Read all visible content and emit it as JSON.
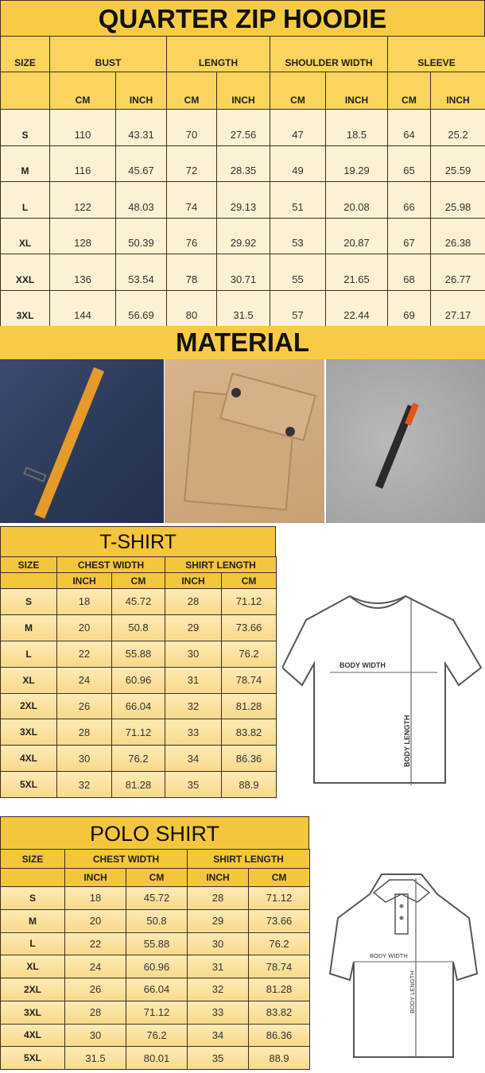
{
  "colors": {
    "title_bg": "#f7cb45",
    "header_bg": "#fad45c",
    "row_bg": "#fdf1d3"
  },
  "hoodie": {
    "title": "QUARTER ZIP HOODIE",
    "size_label": "SIZE",
    "groups": [
      "BUST",
      "LENGTH",
      "SHOULDER WIDTH",
      "SLEEVE"
    ],
    "units": [
      "CM",
      "INCH",
      "CM",
      "INCH",
      "CM",
      "INCH",
      "CM",
      "INCH"
    ],
    "rows": [
      [
        "S",
        "110",
        "43.31",
        "70",
        "27.56",
        "47",
        "18.5",
        "64",
        "25.2"
      ],
      [
        "M",
        "116",
        "45.67",
        "72",
        "28.35",
        "49",
        "19.29",
        "65",
        "25.59"
      ],
      [
        "L",
        "122",
        "48.03",
        "74",
        "29.13",
        "51",
        "20.08",
        "66",
        "25.98"
      ],
      [
        "XL",
        "128",
        "50.39",
        "76",
        "29.92",
        "53",
        "20.87",
        "67",
        "26.38"
      ],
      [
        "XXL",
        "136",
        "53.54",
        "78",
        "30.71",
        "55",
        "21.65",
        "68",
        "26.77"
      ],
      [
        "3XL",
        "144",
        "56.69",
        "80",
        "31.5",
        "57",
        "22.44",
        "69",
        "27.17"
      ]
    ]
  },
  "material": {
    "title": "MATERIAL",
    "photos": [
      "navy-fabric-orange-strap",
      "tan-fabric-pocket-flap",
      "grey-fabric-zipper"
    ]
  },
  "tshirt": {
    "title": "T-SHIRT",
    "size_label": "SIZE",
    "groups": [
      "CHEST WIDTH",
      "SHIRT LENGTH"
    ],
    "units": [
      "INCH",
      "CM",
      "INCH",
      "CM"
    ],
    "rows": [
      [
        "S",
        "18",
        "45.72",
        "28",
        "71.12"
      ],
      [
        "M",
        "20",
        "50.8",
        "29",
        "73.66"
      ],
      [
        "L",
        "22",
        "55.88",
        "30",
        "76.2"
      ],
      [
        "XL",
        "24",
        "60.96",
        "31",
        "78.74"
      ],
      [
        "2XL",
        "26",
        "66.04",
        "32",
        "81.28"
      ],
      [
        "3XL",
        "28",
        "71.12",
        "33",
        "83.82"
      ],
      [
        "4XL",
        "30",
        "76.2",
        "34",
        "86.36"
      ],
      [
        "5XL",
        "32",
        "81.28",
        "35",
        "88.9"
      ]
    ],
    "diagram": {
      "width_label": "BODY WIDTH",
      "length_label": "BODY LENGTH"
    }
  },
  "polo": {
    "title": "POLO SHIRT",
    "size_label": "SIZE",
    "groups": [
      "CHEST WIDTH",
      "SHIRT LENGTH"
    ],
    "units": [
      "INCH",
      "CM",
      "INCH",
      "CM"
    ],
    "rows": [
      [
        "S",
        "18",
        "45.72",
        "28",
        "71.12"
      ],
      [
        "M",
        "20",
        "50.8",
        "29",
        "73.66"
      ],
      [
        "L",
        "22",
        "55.88",
        "30",
        "76.2"
      ],
      [
        "XL",
        "24",
        "60.96",
        "31",
        "78.74"
      ],
      [
        "2XL",
        "26",
        "66.04",
        "32",
        "81.28"
      ],
      [
        "3XL",
        "28",
        "71.12",
        "33",
        "83.82"
      ],
      [
        "4XL",
        "30",
        "76.2",
        "34",
        "86.36"
      ],
      [
        "5XL",
        "31.5",
        "80.01",
        "35",
        "88.9"
      ]
    ],
    "diagram": {
      "width_label": "BODY WIDTH",
      "length_label": "BODY LENGTH"
    }
  }
}
